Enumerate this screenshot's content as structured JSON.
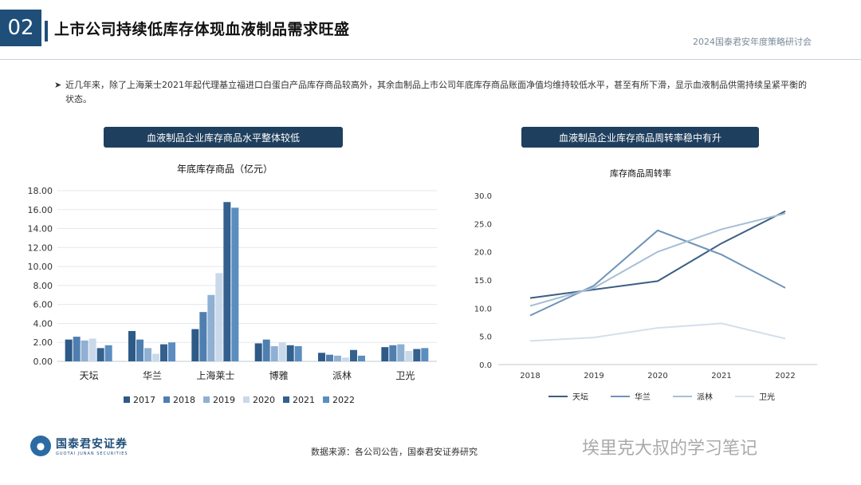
{
  "header": {
    "number": "02",
    "title": "上市公司持续低库存体现血液制品需求旺盛",
    "watermark": "2024国泰君安年度策略研讨会"
  },
  "bullet": {
    "text": "近几年来，除了上海莱士2021年起代理基立福进口白蛋白产品库存商品较高外，其余血制品上市公司年底库存商品账面净值均维持较低水平，甚至有所下滑，显示血液制品供需持续呈紧平衡的状态。"
  },
  "left_pill": "血液制品企业库存商品水平整体较低",
  "right_pill": "血液制品企业库存商品周转率稳中有升",
  "footer": {
    "logo_cn": "国泰君安证券",
    "logo_en": "GUOTAI JUNAN SECURITIES",
    "source": "数据来源：各公司公告，国泰君安证券研究",
    "wechat": "埃里克大叔的学习笔记"
  },
  "chart_data": [
    {
      "type": "bar",
      "title": "年底库存商品（亿元）",
      "categories": [
        "天坛",
        "华兰",
        "上海莱士",
        "博雅",
        "派林",
        "卫光"
      ],
      "yticks": [
        "0.00",
        "2.00",
        "4.00",
        "6.00",
        "8.00",
        "10.00",
        "12.00",
        "14.00",
        "16.00",
        "18.00"
      ],
      "ylim": [
        0,
        18
      ],
      "grid": true,
      "legend": "bottom",
      "series": [
        {
          "name": "2017",
          "color": "#2e5a87",
          "values": [
            2.3,
            3.2,
            3.4,
            1.9,
            0.9,
            1.5
          ]
        },
        {
          "name": "2018",
          "color": "#4f7fb0",
          "values": [
            2.6,
            2.3,
            5.2,
            2.3,
            0.7,
            1.7
          ]
        },
        {
          "name": "2019",
          "color": "#8fb0d3",
          "values": [
            2.2,
            1.4,
            7.0,
            1.6,
            0.6,
            1.8
          ]
        },
        {
          "name": "2020",
          "color": "#c9d9ea",
          "values": [
            2.4,
            0.8,
            9.3,
            2.0,
            0.4,
            1.1
          ]
        },
        {
          "name": "2021",
          "color": "#34608e",
          "values": [
            1.4,
            1.8,
            16.8,
            1.7,
            1.2,
            1.3
          ]
        },
        {
          "name": "2022",
          "color": "#5b8dc0",
          "values": [
            1.7,
            2.0,
            16.2,
            1.6,
            0.6,
            1.4
          ]
        }
      ]
    },
    {
      "type": "line",
      "title": "库存商品周转率",
      "categories": [
        "2018",
        "2019",
        "2020",
        "2021",
        "2022"
      ],
      "yticks": [
        "0.0",
        "5.0",
        "10.0",
        "15.0",
        "20.0",
        "25.0",
        "30.0"
      ],
      "ylim": [
        0,
        30
      ],
      "grid": false,
      "legend": "bottom",
      "series": [
        {
          "name": "天坛",
          "color": "#3b5f84",
          "values": [
            11.8,
            13.3,
            14.8,
            21.5,
            27.2
          ]
        },
        {
          "name": "华兰",
          "color": "#6f93ba",
          "values": [
            8.7,
            14.0,
            23.8,
            19.5,
            13.6
          ]
        },
        {
          "name": "派林",
          "color": "#a6bed6",
          "values": [
            10.4,
            13.6,
            20.0,
            24.0,
            26.8
          ]
        },
        {
          "name": "卫光",
          "color": "#d3dfeb",
          "values": [
            4.2,
            4.8,
            6.5,
            7.3,
            4.6
          ]
        }
      ]
    }
  ]
}
